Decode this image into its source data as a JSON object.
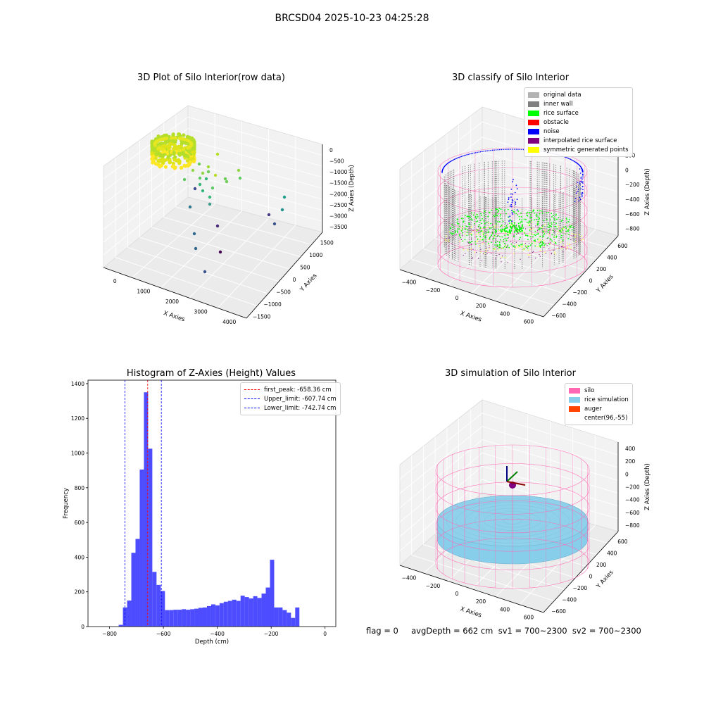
{
  "suptitle": "BRCSD04 2025-10-23 04:25:28",
  "footer": "flag = 0     avgDepth = 662 cm  sv1 = 700~2300  sv2 = 700~2300",
  "colors": {
    "original": "#b3b3b3",
    "inner_wall": "#808080",
    "rice_surface": "#00ff00",
    "obstacle": "#ff0000",
    "noise": "#0000ff",
    "interpolated": "#800080",
    "symmetric": "#ffff00",
    "silo": "#ff69b4",
    "rice_sim": "#87ceeb",
    "auger": "#ff4500",
    "hist_bar": "#4d4dff"
  },
  "chart_data": [
    {
      "type": "scatter",
      "title": "3D Plot of Silo Interior(row data)",
      "xlabel": "X Axies",
      "ylabel": "Y Axies",
      "zlabel": "Z Axies (Depth)",
      "x_ticks": [
        "0",
        "1000",
        "2000",
        "3000",
        "4000"
      ],
      "y_ticks": [
        "−1500",
        "−1000",
        "−500",
        "0",
        "500",
        "1000",
        "1500"
      ],
      "z_ticks": [
        "0",
        "−500",
        "−1000",
        "−1500",
        "−2000",
        "−2500",
        "−3000",
        "−3500"
      ]
    },
    {
      "type": "scatter",
      "title": "3D classify of Silo Interior",
      "xlabel": "X Axies",
      "ylabel": "Y Axies",
      "zlabel": "Z Axies (Depth)",
      "x_ticks": [
        "−400",
        "−200",
        "0",
        "200",
        "400",
        "600"
      ],
      "y_ticks": [
        "−600",
        "−400",
        "−200",
        "0",
        "200",
        "400",
        "600"
      ],
      "z_ticks": [
        "200",
        "0",
        "−200",
        "−400",
        "−600",
        "−800"
      ],
      "legend": [
        "original data",
        "inner wall",
        "rice surface",
        "obstacle",
        "noise",
        "interpolated rice surface",
        "symmetric generated points"
      ]
    },
    {
      "type": "bar",
      "title": "Histogram of Z-Axies (Height) Values",
      "xlabel": "Depth (cm)",
      "ylabel": "Frequency",
      "xlim": [
        -880,
        40
      ],
      "ylim": [
        0,
        1420
      ],
      "x_ticks": [
        -800,
        -600,
        -400,
        -200,
        0
      ],
      "x_tick_labels": [
        "−800",
        "−600",
        "−400",
        "−200",
        "0"
      ],
      "y_ticks": [
        0,
        200,
        400,
        600,
        800,
        1000,
        1200,
        1400
      ],
      "y_tick_labels": [
        "0",
        "200",
        "400",
        "600",
        "800",
        "1000",
        "1200",
        "1400"
      ],
      "bin_start": -766,
      "bin_width": 15.6,
      "values": [
        10,
        110,
        150,
        425,
        505,
        905,
        1350,
        1025,
        315,
        240,
        205,
        95,
        95,
        97,
        97,
        100,
        97,
        100,
        103,
        108,
        110,
        118,
        128,
        122,
        135,
        143,
        148,
        155,
        148,
        178,
        170,
        162,
        175,
        165,
        190,
        225,
        385,
        110,
        110,
        95,
        80,
        50,
        110
      ],
      "vlines": [
        {
          "x": -658.36,
          "label": "first_peak: -658.36 cm",
          "color": "#ff0000"
        },
        {
          "x": -607.74,
          "label": "Upper_limit: -607.74 cm",
          "color": "#0000ff"
        },
        {
          "x": -742.74,
          "label": "Lower_limit: -742.74 cm",
          "color": "#0000ff"
        }
      ]
    },
    {
      "type": "scatter",
      "title": "3D simulation of Silo Interior",
      "xlabel": "X Axies",
      "ylabel": "Y Axies",
      "zlabel": "Z Axies (Depth)",
      "x_ticks": [
        "−400",
        "−200",
        "0",
        "200",
        "400",
        "600"
      ],
      "y_ticks": [
        "−600",
        "−400",
        "−200",
        "0",
        "200",
        "400",
        "600"
      ],
      "z_ticks": [
        "400",
        "200",
        "0",
        "−200",
        "−400",
        "−600",
        "−800"
      ],
      "legend": [
        "silo",
        "rice simulation",
        "auger",
        "center(96,-55)"
      ]
    }
  ]
}
